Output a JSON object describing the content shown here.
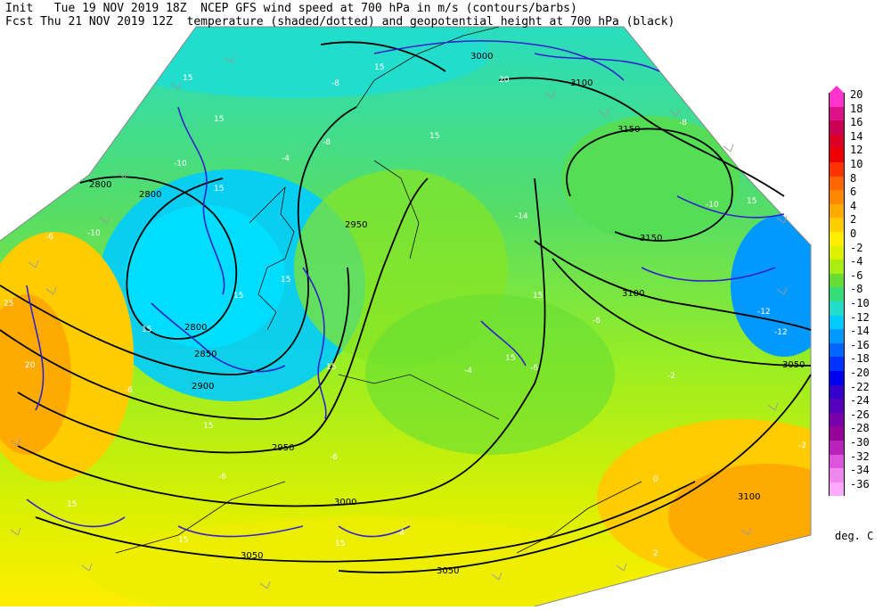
{
  "header": {
    "init_label": "Init",
    "init_value": "Tue 19 NOV 2019 18Z",
    "fcst_label": "Fcst",
    "fcst_value": "Thu 21 NOV 2019 12Z",
    "title_line1": "NCEP GFS wind speed at 700 hPa in m/s (contours/barbs)",
    "title_line2": "temperature (shaded/dotted) and geopotential height at 700 hPa (black)"
  },
  "colorbar": {
    "units": "deg. C",
    "levels": [
      "20",
      "18",
      "16",
      "14",
      "12",
      "10",
      "8",
      "6",
      "4",
      "2",
      "0",
      "-2",
      "-4",
      "-6",
      "-8",
      "-10",
      "-12",
      "-14",
      "-16",
      "-18",
      "-20",
      "-22",
      "-24",
      "-26",
      "-28",
      "-30",
      "-32",
      "-34",
      "-36"
    ],
    "colors": [
      "#ff33cc",
      "#dd1188",
      "#cc0055",
      "#dd0022",
      "#ee0000",
      "#ff3300",
      "#ff6600",
      "#ff8800",
      "#ffaa00",
      "#ffcc00",
      "#ffee00",
      "#ddf000",
      "#aaee11",
      "#66dd33",
      "#33dd77",
      "#22ddcc",
      "#00ccff",
      "#0099ff",
      "#0066ff",
      "#0033ff",
      "#0000ee",
      "#3300cc",
      "#5500bb",
      "#7700aa",
      "#990099",
      "#bb22bb",
      "#dd55dd",
      "#ee88ee",
      "#ffaaff"
    ]
  },
  "height_labels": [
    {
      "text": "2800"
    },
    {
      "text": "2800"
    },
    {
      "text": "2800"
    },
    {
      "text": "2850"
    },
    {
      "text": "2900"
    },
    {
      "text": "2950"
    },
    {
      "text": "2950"
    },
    {
      "text": "3000"
    },
    {
      "text": "3050"
    },
    {
      "text": "3050"
    },
    {
      "text": "3050"
    },
    {
      "text": "3100"
    },
    {
      "text": "3100"
    },
    {
      "text": "3100"
    },
    {
      "text": "3150"
    },
    {
      "text": "3150"
    },
    {
      "text": "3000"
    }
  ],
  "wind_labels": [
    "15",
    "15",
    "15",
    "15",
    "15",
    "15",
    "15",
    "15",
    "15",
    "15",
    "15",
    "15",
    "20",
    "20",
    "25",
    "15",
    "15",
    "15",
    "15"
  ],
  "temp_labels": [
    "-10",
    "-10",
    "-8",
    "-8",
    "-6",
    "-6",
    "-6",
    "-6",
    "-4",
    "-4",
    "-2",
    "0",
    "2",
    "-12",
    "-12",
    "-10",
    "-6",
    "-8",
    "-4",
    "-6",
    "-2",
    "-14"
  ]
}
